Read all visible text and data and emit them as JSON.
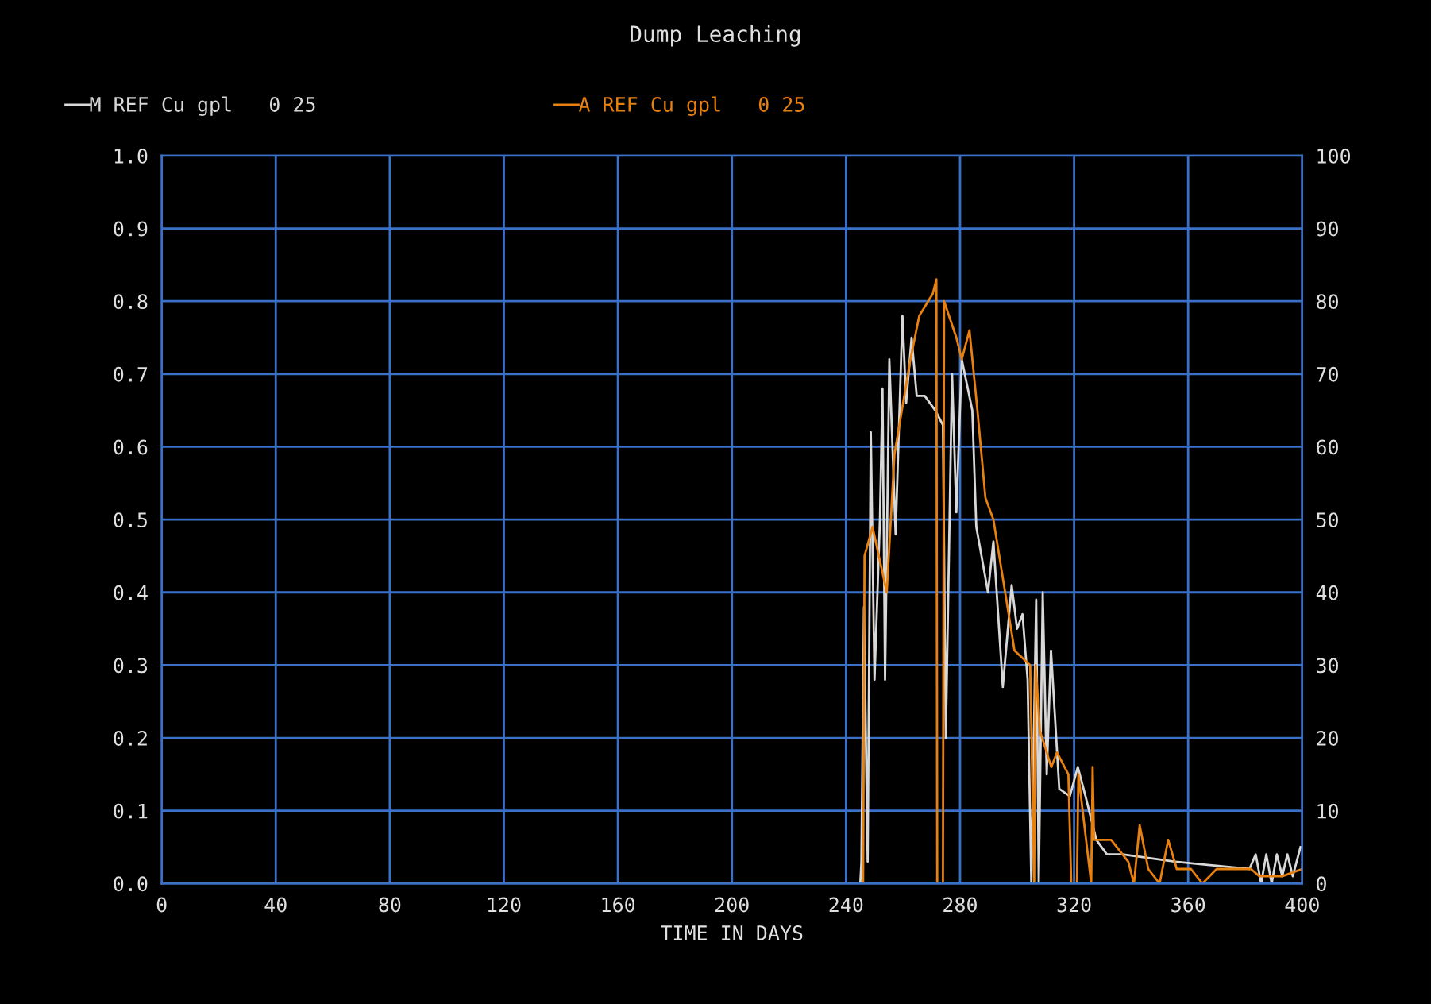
{
  "chart_data": {
    "type": "line",
    "title": "Dump Leaching",
    "xlabel": "TIME IN DAYS",
    "xlim": [
      0,
      400
    ],
    "xticks": [
      0,
      40,
      80,
      120,
      160,
      200,
      240,
      280,
      320,
      360,
      400
    ],
    "ylim": [
      0.0,
      1.0
    ],
    "yticks": [
      {
        "value": 0,
        "label": "0.0"
      },
      0.1,
      0.2,
      0.3,
      0.4,
      0.5,
      0.6,
      0.7,
      0.8,
      0.9,
      {
        "value": 1,
        "label": "1.0"
      }
    ],
    "y2lim": [
      0,
      100
    ],
    "y2ticks": [
      0,
      10,
      20,
      30,
      40,
      50,
      60,
      70,
      80,
      90,
      100
    ],
    "grid": true,
    "legend": "top",
    "marker": "none",
    "line_style": "solid",
    "series": [
      {
        "name": "M REF Cu gpl   0 25",
        "color": "#d8d8d8",
        "x": [
          0,
          245,
          245.4,
          246.3,
          247.6,
          248.7,
          250,
          251.9,
          252.8,
          253.7,
          255.2,
          257.4,
          259.8,
          261.1,
          263,
          264.8,
          267.6,
          271.3,
          274,
          275,
          277.2,
          278.7,
          280.6,
          284.3,
          285.7,
          289.8,
          291.7,
          295,
          298.1,
          300,
          301.9,
          303.7,
          305,
          306.7,
          307.6,
          309,
          310.4,
          311.9,
          314.8,
          318.5,
          321.3,
          324,
          327.8,
          331.5,
          337,
          355.6,
          381.5,
          383.7,
          385.6,
          387.4,
          389.3,
          391.1,
          393,
          394.8,
          396.7,
          399.4
        ],
        "values": [
          0,
          0,
          0.03,
          0.38,
          0.03,
          0.62,
          0.28,
          0.5,
          0.68,
          0.28,
          0.72,
          0.48,
          0.78,
          0.66,
          0.75,
          0.67,
          0.67,
          0.65,
          0.63,
          0.2,
          0.7,
          0.51,
          0.72,
          0.65,
          0.49,
          0.4,
          0.47,
          0.27,
          0.41,
          0.35,
          0.37,
          0.28,
          0,
          0.39,
          0,
          0.4,
          0.15,
          0.32,
          0.13,
          0.12,
          0.16,
          0.12,
          0.06,
          0.04,
          0.04,
          0.03,
          0.02,
          0.04,
          0,
          0.04,
          0,
          0.04,
          0.01,
          0.04,
          0.01,
          0.05
        ]
      },
      {
        "name": "A REF Cu gpl   0 25",
        "color": "#e8800f",
        "x": [
          0,
          246,
          246.5,
          249.3,
          254.3,
          257,
          262.6,
          265.7,
          270.4,
          271.7,
          272,
          274,
          274.4,
          278.7,
          280.6,
          283.3,
          286.1,
          288.9,
          291.7,
          295.4,
          299.1,
          304.6,
          306,
          306.5,
          308,
          312,
          314,
          318,
          319,
          321,
          321.5,
          326,
          326.5,
          327,
          328,
          333,
          339,
          341,
          343,
          346,
          350,
          353,
          356,
          361,
          365,
          370,
          382,
          385,
          393,
          400
        ],
        "values": [
          0,
          0,
          0.45,
          0.49,
          0.4,
          0.59,
          0.72,
          0.78,
          0.81,
          0.83,
          0,
          0,
          0.8,
          0.75,
          0.72,
          0.76,
          0.65,
          0.53,
          0.5,
          0.41,
          0.32,
          0.3,
          0,
          0.3,
          0.21,
          0.16,
          0.18,
          0.15,
          0,
          0,
          0.15,
          0,
          0.16,
          0.06,
          0.06,
          0.06,
          0.03,
          0,
          0.08,
          0.02,
          0,
          0.06,
          0.02,
          0.02,
          0,
          0.02,
          0.02,
          0.01,
          0.01,
          0.02
        ]
      }
    ]
  }
}
